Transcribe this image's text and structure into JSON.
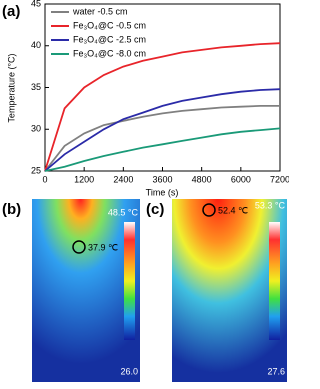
{
  "chart_data": {
    "type": "line",
    "panel_label": "(a)",
    "x_label": "Time (s)",
    "y_label": "Temperature (°C)",
    "x": [
      0,
      600,
      1200,
      1800,
      2400,
      3000,
      3600,
      4200,
      4800,
      5400,
      6000,
      6600,
      7200
    ],
    "series": [
      {
        "name": "water         -0.5 cm",
        "color": "#808080",
        "values": [
          25,
          28,
          29.5,
          30.5,
          31,
          31.5,
          31.9,
          32.2,
          32.4,
          32.6,
          32.7,
          32.8,
          32.8
        ]
      },
      {
        "name": "Fe₃O₄@C -0.5 cm",
        "color": "#e8242a",
        "values": [
          25,
          32.5,
          35,
          36.5,
          37.5,
          38.2,
          38.7,
          39.2,
          39.5,
          39.8,
          40,
          40.2,
          40.3
        ]
      },
      {
        "name": "Fe₃O₄@C -2.5 cm",
        "color": "#2b2ba8",
        "values": [
          25,
          27,
          28.5,
          30,
          31.2,
          32,
          32.8,
          33.4,
          33.8,
          34.2,
          34.5,
          34.7,
          34.8
        ]
      },
      {
        "name": "Fe₃O₄@C -8.0 cm",
        "color": "#1a9a78",
        "values": [
          25,
          25.5,
          26.2,
          26.8,
          27.3,
          27.8,
          28.2,
          28.6,
          29,
          29.4,
          29.7,
          29.9,
          30.1
        ]
      }
    ],
    "xlim": [
      0,
      7200
    ],
    "xticks": [
      0,
      1200,
      2400,
      3600,
      4800,
      6000,
      7200
    ],
    "ylim": [
      25,
      45
    ],
    "yticks": [
      25,
      30,
      35,
      40,
      45
    ],
    "grid": false,
    "legend": "upper left"
  },
  "images": [
    {
      "label": "(b)",
      "max": "48.5 °C",
      "min": "26.0",
      "spot": "37.9 ℃"
    },
    {
      "label": "(c)",
      "max": "53.3 °C",
      "min": "27.6",
      "spot": "52.4 ℃"
    }
  ]
}
